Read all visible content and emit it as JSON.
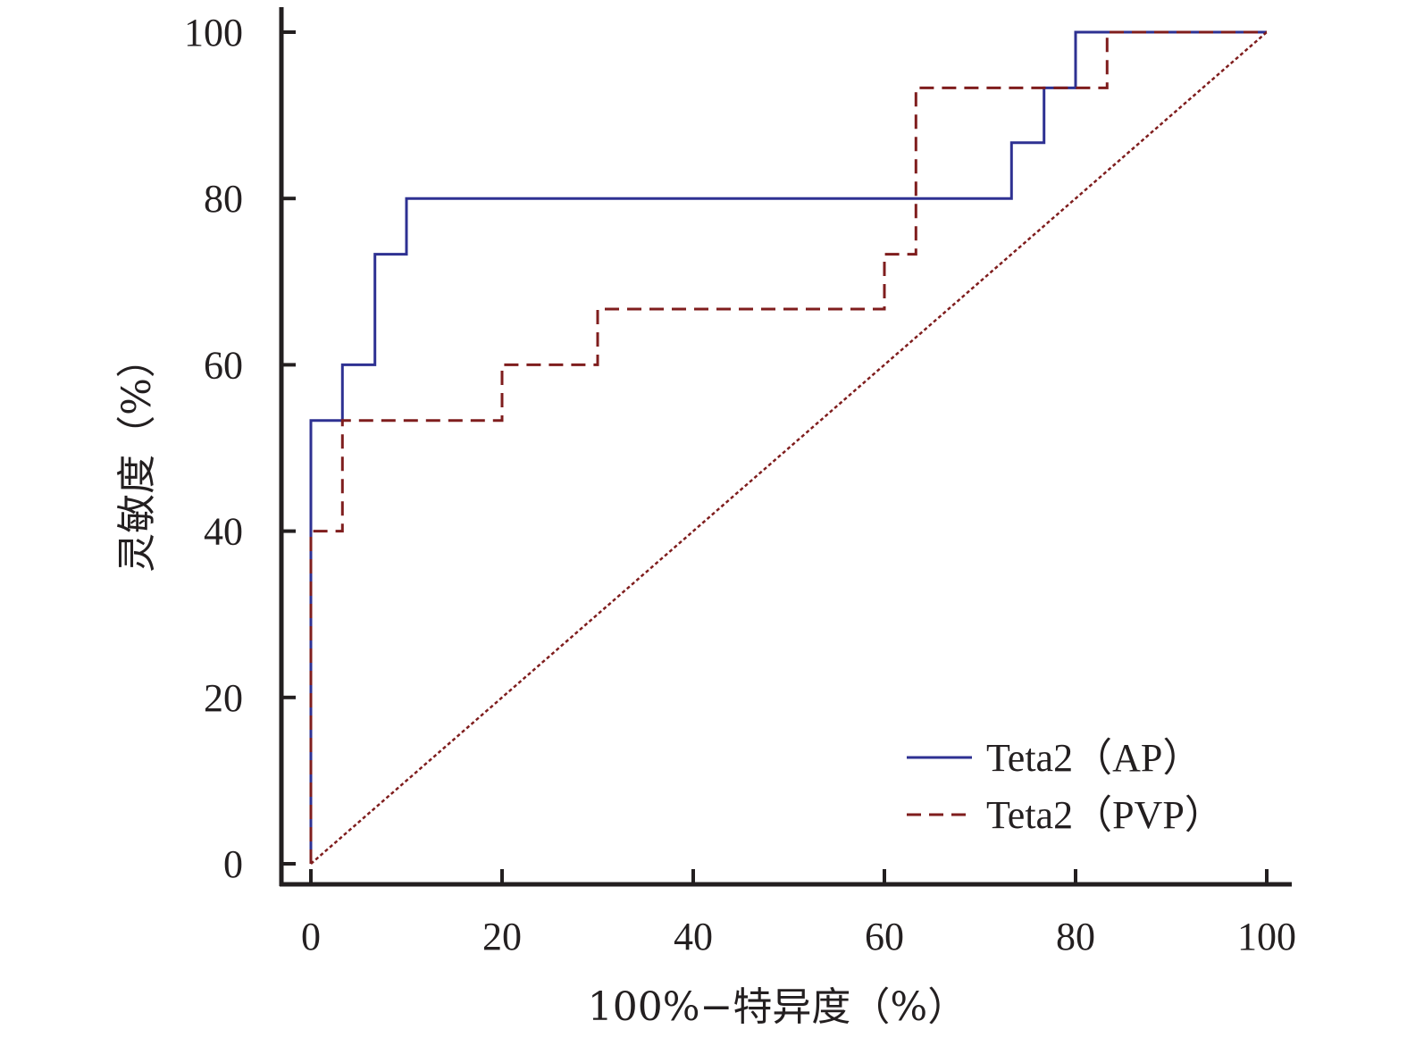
{
  "chart_data": {
    "type": "line",
    "title": "",
    "xlabel": "100%−特异度（%）",
    "ylabel": "灵敏度（%）",
    "xlim": [
      0,
      100
    ],
    "ylim": [
      0,
      100
    ],
    "x_ticks": [
      "0",
      "20",
      "40",
      "60",
      "80",
      "100"
    ],
    "y_ticks": [
      "0",
      "20",
      "40",
      "60",
      "80",
      "100"
    ],
    "grid": false,
    "legend_position": "bottom-right",
    "series": [
      {
        "name": "Teta2（AP）",
        "style": "solid",
        "color": "#2e3192",
        "step": true,
        "points": [
          [
            0,
            0
          ],
          [
            0,
            53.3
          ],
          [
            3.3,
            53.3
          ],
          [
            3.3,
            60
          ],
          [
            6.7,
            60
          ],
          [
            6.7,
            73.3
          ],
          [
            10,
            73.3
          ],
          [
            10,
            80
          ],
          [
            73.3,
            80
          ],
          [
            73.3,
            86.7
          ],
          [
            76.7,
            86.7
          ],
          [
            76.7,
            93.3
          ],
          [
            80,
            93.3
          ],
          [
            80,
            100
          ],
          [
            100,
            100
          ]
        ]
      },
      {
        "name": "Teta2（PVP）",
        "style": "dashed",
        "color": "#7f1d1d",
        "step": true,
        "points": [
          [
            0,
            0
          ],
          [
            0,
            40
          ],
          [
            3.3,
            40
          ],
          [
            3.3,
            53.3
          ],
          [
            20,
            53.3
          ],
          [
            20,
            60
          ],
          [
            30,
            60
          ],
          [
            30,
            66.7
          ],
          [
            60,
            66.7
          ],
          [
            60,
            73.3
          ],
          [
            63.3,
            73.3
          ],
          [
            63.3,
            93.3
          ],
          [
            83.3,
            93.3
          ],
          [
            83.3,
            100
          ],
          [
            100,
            100
          ]
        ]
      },
      {
        "style": "dotted",
        "color": "#7f1d1d",
        "reference": true,
        "points": [
          [
            0,
            0
          ],
          [
            100,
            100
          ]
        ]
      }
    ]
  }
}
